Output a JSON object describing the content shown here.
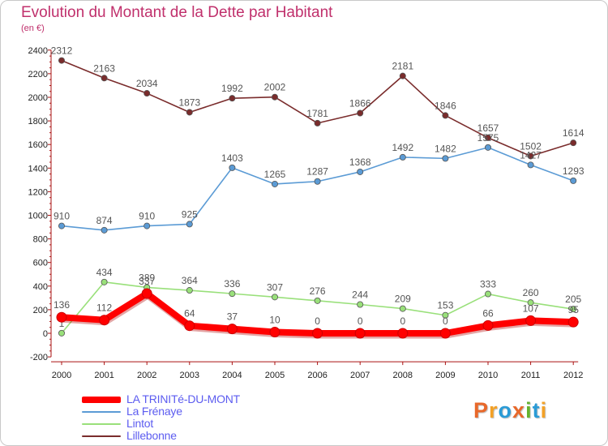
{
  "title": "Evolution du Montant de la Dette par Habitant",
  "subtitle": "(en €)",
  "logo": {
    "text": "Proxiti",
    "colors": [
      "#e8682a",
      "#f3a126",
      "#2a9bd6",
      "#e8682a",
      "#65b32e",
      "#2a9bd6",
      "#f3a126"
    ]
  },
  "chart_data": {
    "type": "line",
    "title": "Evolution du Montant de la Dette par Habitant",
    "ylabel": "(en €)",
    "x": [
      "2000",
      "2001",
      "2002",
      "2003",
      "2004",
      "2005",
      "2006",
      "2007",
      "2008",
      "2009",
      "2010",
      "2011",
      "2012"
    ],
    "ylim": [
      -200,
      2400
    ],
    "yticks": [
      -200,
      0,
      200,
      400,
      600,
      800,
      1000,
      1200,
      1400,
      1600,
      1800,
      2000,
      2200,
      2400
    ],
    "grid": false,
    "legend_position": "bottom-left",
    "series": [
      {
        "name": "LA TRINITé-DU-MONT",
        "color": "#ff0000",
        "values": [
          136,
          112,
          337,
          64,
          37,
          10,
          0,
          0,
          0,
          0,
          66,
          107,
          95
        ],
        "labels": [
          "136",
          "112",
          "337",
          "64",
          "37",
          "10",
          "0",
          "0",
          "0",
          "0",
          "66",
          "107",
          "95"
        ]
      },
      {
        "name": "La Frénaye",
        "color": "#5b9bd5",
        "values": [
          910,
          874,
          910,
          925,
          1403,
          1265,
          1287,
          1368,
          1492,
          1482,
          1575,
          1427,
          1293
        ],
        "labels": [
          "910",
          "874",
          "910",
          "925",
          "1403",
          "1265",
          "1287",
          "1368",
          "1492",
          "1482",
          "1575",
          "1427",
          "1293"
        ]
      },
      {
        "name": "Lintot",
        "color": "#99e07a",
        "values": [
          1,
          434,
          389,
          364,
          336,
          307,
          276,
          244,
          209,
          153,
          333,
          260,
          205
        ],
        "labels": [
          "1",
          "434",
          "389",
          "364",
          "336",
          "307",
          "276",
          "244",
          "209",
          "153",
          "333",
          "260",
          "205"
        ]
      },
      {
        "name": "Lillebonne",
        "color": "#7a2c2c",
        "values": [
          2312,
          2163,
          2034,
          1873,
          1992,
          2002,
          1781,
          1866,
          2181,
          1846,
          1657,
          1502,
          1614
        ],
        "labels": [
          "2312",
          "2163",
          "2034",
          "1873",
          "1992",
          "2002",
          "1781",
          "1866",
          "2181",
          "1846",
          "1657",
          "1502",
          "1614"
        ]
      }
    ]
  }
}
